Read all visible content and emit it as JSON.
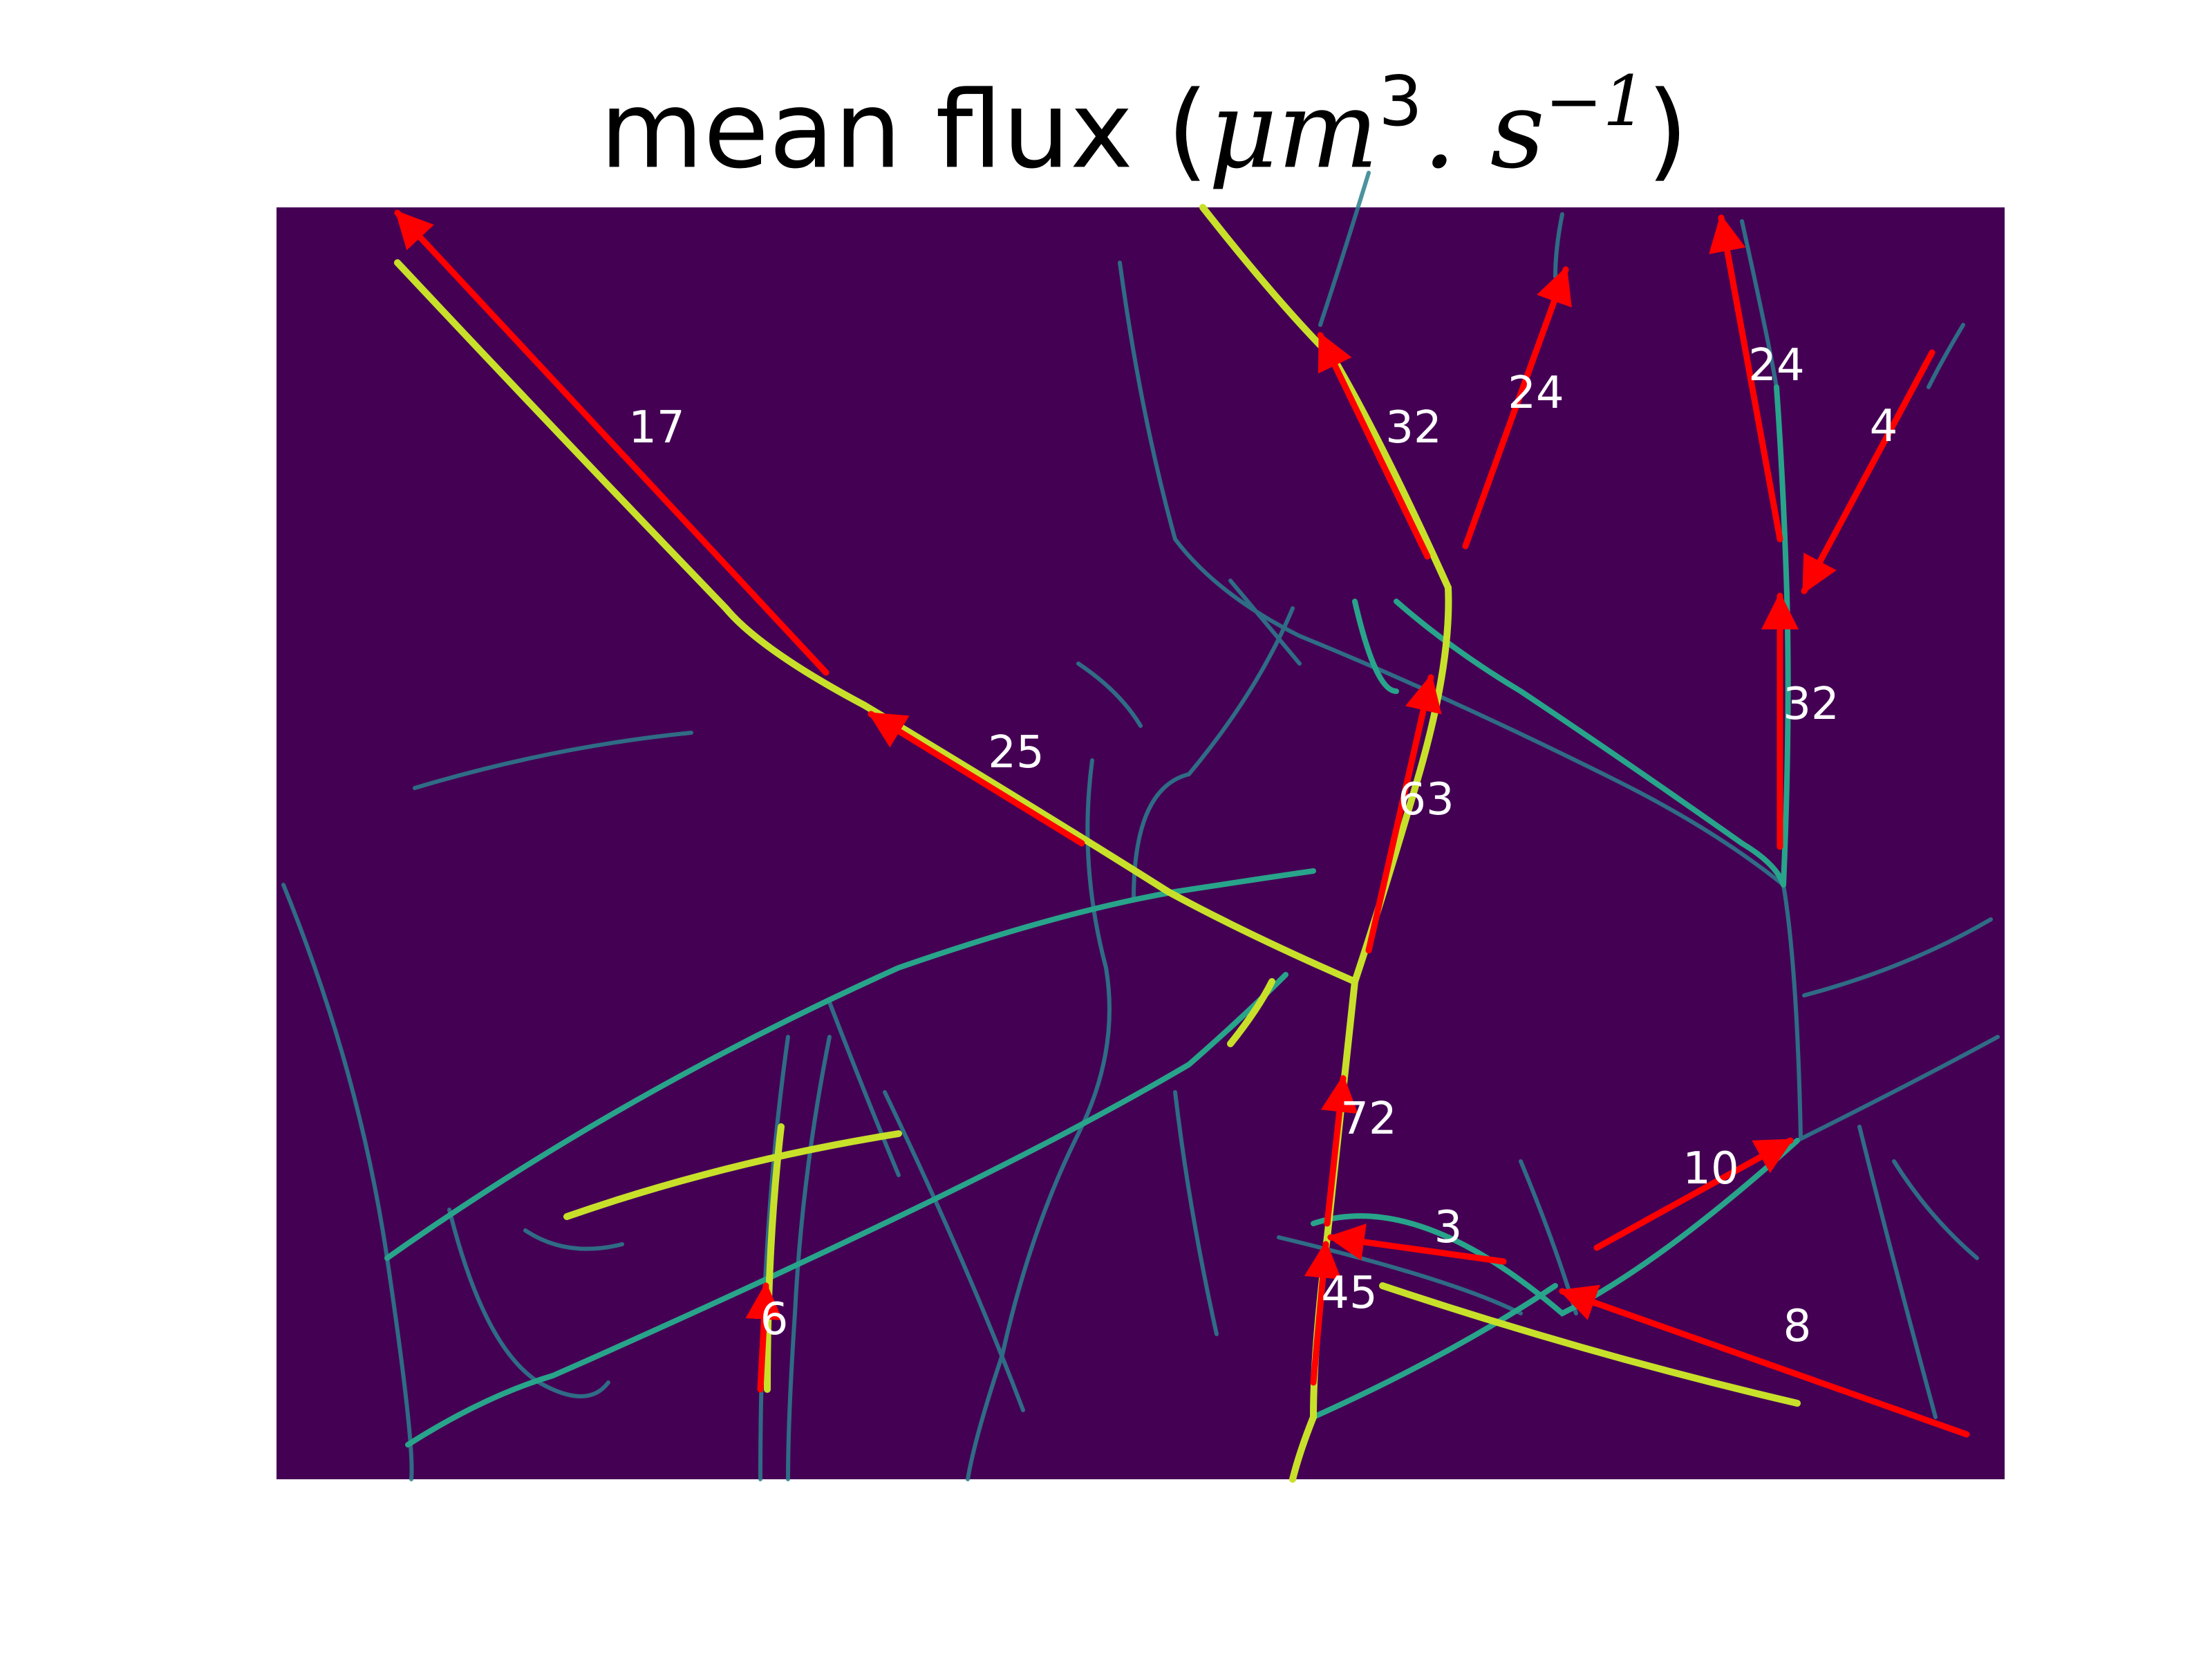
{
  "title": {
    "prefix": "mean flux (",
    "unit_base": "μm",
    "unit_base_exp": "3",
    "unit_sep": ". s",
    "unit_exp": "−1",
    "suffix": ")"
  },
  "colors": {
    "background": "#440154",
    "hypha_bright": "#fde725",
    "hypha_mid": "#21918c",
    "arrow": "#ff0000",
    "label": "#ffffff"
  },
  "flux_edges": [
    {
      "id": "e17",
      "value": "17"
    },
    {
      "id": "e25",
      "value": "25"
    },
    {
      "id": "e32a",
      "value": "32"
    },
    {
      "id": "e24a",
      "value": "24"
    },
    {
      "id": "e24b",
      "value": "24"
    },
    {
      "id": "e4",
      "value": "4"
    },
    {
      "id": "e32b",
      "value": "32"
    },
    {
      "id": "e63",
      "value": "63"
    },
    {
      "id": "e72",
      "value": "72"
    },
    {
      "id": "e3",
      "value": "3"
    },
    {
      "id": "e10",
      "value": "10"
    },
    {
      "id": "e45",
      "value": "45"
    },
    {
      "id": "e6",
      "value": "6"
    },
    {
      "id": "e8",
      "value": "8"
    }
  ]
}
